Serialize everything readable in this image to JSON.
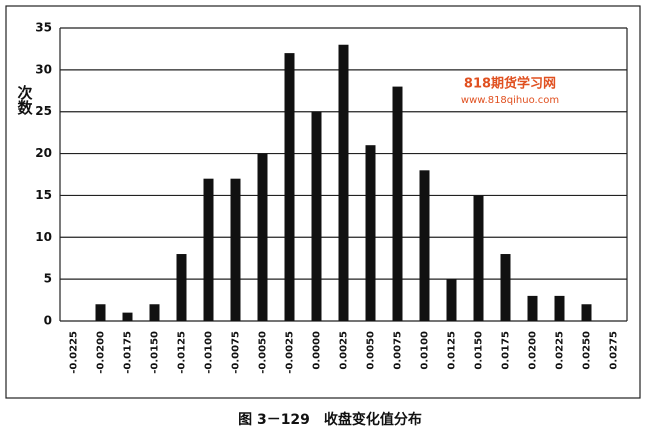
{
  "chart_data": {
    "type": "bar",
    "y_label": "次数",
    "caption": "图 3－129　收盘变化值分布",
    "watermark": [
      "818期货学习网",
      "www.818qihuo.com"
    ],
    "categories": [
      "-0.0225",
      "-0.0200",
      "-0.0175",
      "-0.0150",
      "-0.0125",
      "-0.0100",
      "-0.0075",
      "-0.0050",
      "-0.0025",
      "0.0000",
      "0.0025",
      "0.0050",
      "0.0075",
      "0.0100",
      "0.0125",
      "0.0150",
      "0.0175",
      "0.0200",
      "0.0225",
      "0.0250",
      "0.0275"
    ],
    "values": [
      0,
      2,
      1,
      2,
      8,
      17,
      17,
      20,
      32,
      25,
      33,
      21,
      28,
      18,
      5,
      15,
      8,
      3,
      3,
      2,
      0
    ],
    "color": "#111111",
    "ylim": [
      0,
      35
    ],
    "yticks": [
      0,
      5,
      10,
      15,
      20,
      25,
      30,
      35
    ],
    "grid": true
  }
}
